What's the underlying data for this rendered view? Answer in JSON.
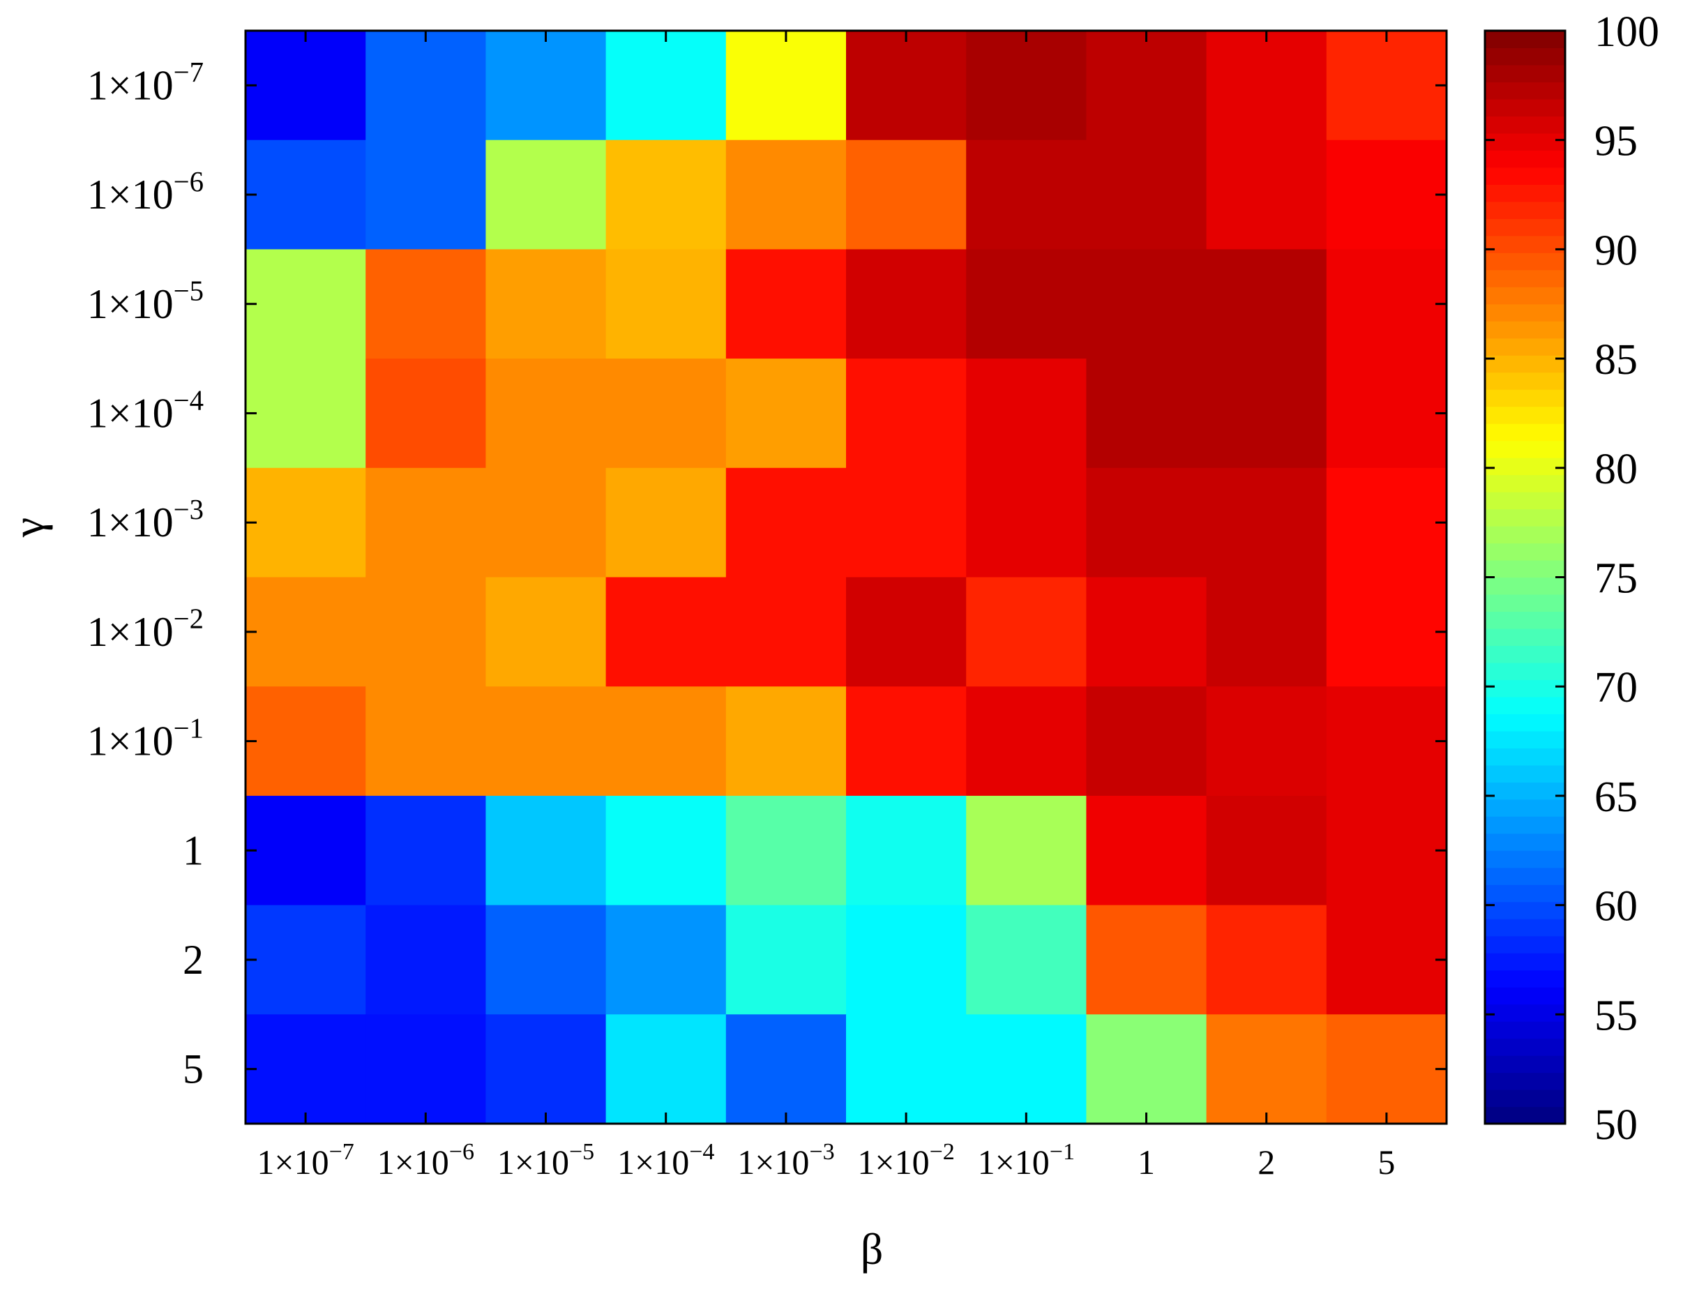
{
  "chart_data": {
    "type": "heatmap",
    "title": "",
    "xlabel": "β",
    "ylabel": "γ",
    "x_categories": [
      {
        "base": "1×10",
        "exp": "−7"
      },
      {
        "base": "1×10",
        "exp": "−6"
      },
      {
        "base": "1×10",
        "exp": "−5"
      },
      {
        "base": "1×10",
        "exp": "−4"
      },
      {
        "base": "1×10",
        "exp": "−3"
      },
      {
        "base": "1×10",
        "exp": "−2"
      },
      {
        "base": "1×10",
        "exp": "−1"
      },
      {
        "base": "1",
        "exp": ""
      },
      {
        "base": "2",
        "exp": ""
      },
      {
        "base": "5",
        "exp": ""
      }
    ],
    "y_categories": [
      {
        "base": "1×10",
        "exp": "−7"
      },
      {
        "base": "1×10",
        "exp": "−6"
      },
      {
        "base": "1×10",
        "exp": "−5"
      },
      {
        "base": "1×10",
        "exp": "−4"
      },
      {
        "base": "1×10",
        "exp": "−3"
      },
      {
        "base": "1×10",
        "exp": "−2"
      },
      {
        "base": "1×10",
        "exp": "−1"
      },
      {
        "base": "1",
        "exp": ""
      },
      {
        "base": "2",
        "exp": ""
      },
      {
        "base": "5",
        "exp": ""
      }
    ],
    "values": [
      [
        56,
        61,
        63.5,
        69,
        81,
        97,
        98,
        97,
        95,
        92
      ],
      [
        60,
        61,
        77.5,
        84.5,
        87,
        89,
        97,
        97,
        95,
        94
      ],
      [
        77.5,
        89,
        86,
        85,
        93,
        96,
        97.5,
        97.5,
        97.5,
        94.5
      ],
      [
        77.5,
        90,
        87,
        87,
        86,
        93,
        95,
        97.5,
        97.5,
        94.5
      ],
      [
        85,
        87,
        87,
        85.5,
        93,
        93,
        95,
        96.5,
        96.5,
        93.5
      ],
      [
        87,
        87,
        85.5,
        93,
        93,
        96,
        92,
        95,
        96.5,
        93.5
      ],
      [
        89,
        87,
        87,
        87,
        85.5,
        93,
        95,
        96.5,
        95.5,
        95
      ],
      [
        56,
        58.5,
        66,
        69,
        73,
        69.5,
        77,
        94.5,
        96,
        95
      ],
      [
        59,
        57.5,
        61,
        63.5,
        70,
        68.5,
        72,
        89.5,
        92,
        95
      ],
      [
        57,
        57,
        58.5,
        67.5,
        61,
        68.5,
        68.5,
        75.5,
        88,
        89
      ]
    ],
    "colorbar": {
      "min": 50,
      "max": 100,
      "ticks": [
        "50",
        "55",
        "60",
        "65",
        "70",
        "75",
        "80",
        "85",
        "90",
        "95",
        "100"
      ]
    },
    "colormap": "jet",
    "grid": false
  }
}
